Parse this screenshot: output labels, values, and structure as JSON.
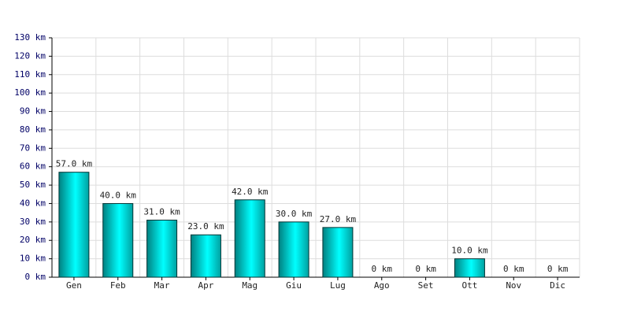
{
  "chart_data": {
    "type": "bar",
    "categories": [
      "Gen",
      "Feb",
      "Mar",
      "Apr",
      "Mag",
      "Giu",
      "Lug",
      "Ago",
      "Set",
      "Ott",
      "Nov",
      "Dic"
    ],
    "values": [
      57,
      40,
      31,
      23,
      42,
      30,
      27,
      0,
      0,
      10,
      0,
      0
    ],
    "value_labels": [
      "57.0 km",
      "40.0 km",
      "31.0 km",
      "23.0 km",
      "42.0 km",
      "30.0 km",
      "27.0 km",
      "0 km",
      "0 km",
      "10.0 km",
      "0 km",
      "0 km"
    ],
    "color": "#00cccc",
    "ylim": [
      0,
      130
    ],
    "yticks": [
      {
        "value": 0,
        "label": "0 km"
      },
      {
        "value": 10,
        "label": "10 km"
      },
      {
        "value": 20,
        "label": "20 km"
      },
      {
        "value": 30,
        "label": "30 km"
      },
      {
        "value": 40,
        "label": "40 km"
      },
      {
        "value": 50,
        "label": "50 km"
      },
      {
        "value": 60,
        "label": "60 km"
      },
      {
        "value": 70,
        "label": "70 km"
      },
      {
        "value": 80,
        "label": "80 km"
      },
      {
        "value": 90,
        "label": "90 km"
      },
      {
        "value": 100,
        "label": "100 km"
      },
      {
        "value": 110,
        "label": "110 km"
      },
      {
        "value": 120,
        "label": "120 km"
      },
      {
        "value": 130,
        "label": "130 km"
      }
    ],
    "grid": true
  }
}
